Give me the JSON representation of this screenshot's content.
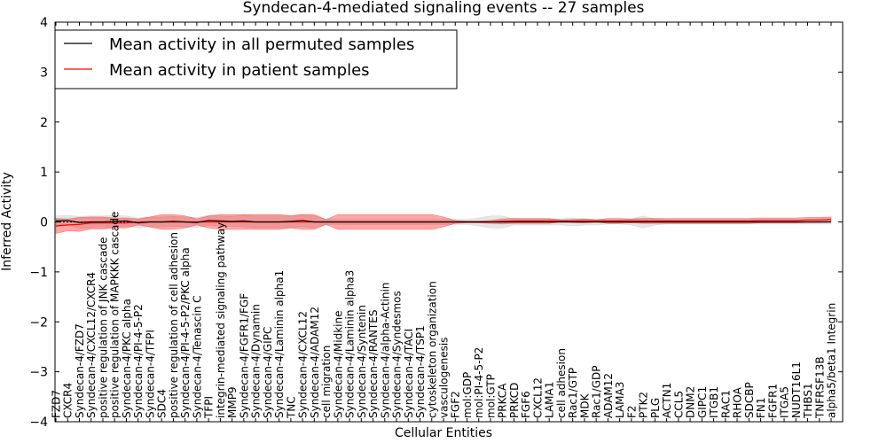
{
  "chart_data": {
    "type": "line",
    "title": "Syndecan-4-mediated signaling events -- 27 samples",
    "xlabel": "Cellular Entities",
    "ylabel": "Inferred Activity",
    "ylim": [
      -4,
      4
    ],
    "yticks": [
      -4,
      -3,
      -2,
      -1,
      0,
      1,
      2,
      3,
      4
    ],
    "grid": false,
    "legend_position": "top-left",
    "categories": [
      "FZD7",
      "CXCR4",
      "Syndecan-4/FZD7",
      "Syndecan-4/CXCL12/CXCR4",
      "positive regulation of JNK cascade",
      "positive regulation of MAPKKK cascade",
      "Syndecan-4/PKC alpha",
      "Syndecan-4/PI-4-5-P2",
      "Syndecan-4/TFPI",
      "SDC4",
      "positive regulation of cell adhesion",
      "Syndecan-4/PI-4-5-P2/PKC alpha",
      "Syndecan-4/Tenascin C",
      "TFPI",
      "integrin-mediated signaling pathway",
      "MMP9",
      "Syndecan-4/FGFR1/FGF",
      "Syndecan-4/Dynamin",
      "Syndecan-4/GIPC",
      "Syndecan-4/Laminin alpha1",
      "TNC",
      "Syndecan-4/CXCL12",
      "Syndecan-4/ADAM12",
      "cell migration",
      "Syndecan-4/Midkine",
      "Syndecan-4/Laminin alpha3",
      "Syndecan-4/Syntenin",
      "Syndecan-4/RANTES",
      "Syndecan-4/alpha-Actinin",
      "Syndecan-4/Syndesmos",
      "Syndecan-4/TACI",
      "Syndecan-4/TSP1",
      "cytoskeleton organization",
      "vasculogenesis",
      "FGF2",
      "mol:GDP",
      "mol:PI-4-5-P2",
      "mol:GTP",
      "PRKCA",
      "PRKCD",
      "FGF6",
      "CXCL12",
      "LAMA1",
      "cell adhesion",
      "Rac1/GTP",
      "MDK",
      "Rac1/GDP",
      "ADAM12",
      "LAMA3",
      "F2",
      "PTK2",
      "PLG",
      "ACTN1",
      "CCL5",
      "DNM2",
      "GIPC1",
      "ITGB1",
      "RAC1",
      "RHOA",
      "SDCBP",
      "FN1",
      "FGFR1",
      "ITGA5",
      "NUDT16L1",
      "THBS1",
      "TNFRSF13B",
      "alpha5/beta1 Integrin"
    ],
    "series": [
      {
        "name": "Mean activity in all permuted samples",
        "color": "#000000",
        "values": [
          0.02,
          0.03,
          -0.01,
          0.0,
          0.0,
          0.01,
          0.02,
          -0.02,
          0.0,
          0.0,
          0.01,
          0.0,
          -0.01,
          0.03,
          0.02,
          0.01,
          0.02,
          0.0,
          0.0,
          0.0,
          0.01,
          0.03,
          0.0,
          0.0,
          0.0,
          0.0,
          0.0,
          0.0,
          0.0,
          0.0,
          0.0,
          0.0,
          0.0,
          0.0,
          0.0,
          0.0,
          0.0,
          0.0,
          0.0,
          0.0,
          0.0,
          0.0,
          0.0,
          0.0,
          0.0,
          0.0,
          0.0,
          0.0,
          0.0,
          0.0,
          0.0,
          0.0,
          0.0,
          0.0,
          0.0,
          0.0,
          0.0,
          0.0,
          0.0,
          0.0,
          0.0,
          0.0,
          0.0,
          0.0,
          0.0,
          0.0,
          0.0
        ],
        "band": [
          0.1,
          0.1,
          0.12,
          0.12,
          0.12,
          0.12,
          0.1,
          0.1,
          0.1,
          0.1,
          0.1,
          0.1,
          0.1,
          0.1,
          0.1,
          0.1,
          0.12,
          0.12,
          0.12,
          0.12,
          0.12,
          0.12,
          0.12,
          0.05,
          0.05,
          0.05,
          0.05,
          0.05,
          0.05,
          0.05,
          0.05,
          0.05,
          0.05,
          0.05,
          0.05,
          0.05,
          0.08,
          0.12,
          0.12,
          0.06,
          0.06,
          0.06,
          0.06,
          0.06,
          0.08,
          0.06,
          0.06,
          0.04,
          0.04,
          0.06,
          0.12,
          0.06,
          0.04,
          0.04,
          0.04,
          0.04,
          0.04,
          0.04,
          0.04,
          0.04,
          0.04,
          0.04,
          0.04,
          0.04,
          0.04,
          0.04,
          0.04
        ]
      },
      {
        "name": "Mean activity in patient samples",
        "color": "#ff0000",
        "values": [
          -0.08,
          -0.06,
          -0.05,
          -0.02,
          -0.02,
          -0.02,
          -0.02,
          0.0,
          0.0,
          0.0,
          0.0,
          0.0,
          0.0,
          0.0,
          0.0,
          0.0,
          0.0,
          0.0,
          0.0,
          0.0,
          0.0,
          0.0,
          0.0,
          0.0,
          0.0,
          0.0,
          0.0,
          0.0,
          0.0,
          0.0,
          0.0,
          0.0,
          0.0,
          0.0,
          0.0,
          0.0,
          0.0,
          0.0,
          0.01,
          0.02,
          0.02,
          0.02,
          0.02,
          0.02,
          0.02,
          0.02,
          0.02,
          0.02,
          0.02,
          0.02,
          0.02,
          0.02,
          0.02,
          0.02,
          0.02,
          0.02,
          0.02,
          0.02,
          0.02,
          0.02,
          0.03,
          0.03,
          0.03,
          0.03,
          0.04,
          0.04,
          0.05
        ],
        "band": [
          0.15,
          0.12,
          0.14,
          0.12,
          0.12,
          0.1,
          0.1,
          0.06,
          0.1,
          0.15,
          0.15,
          0.12,
          0.06,
          0.12,
          0.15,
          0.15,
          0.15,
          0.15,
          0.15,
          0.15,
          0.12,
          0.15,
          0.15,
          0.05,
          0.15,
          0.15,
          0.15,
          0.15,
          0.15,
          0.15,
          0.15,
          0.15,
          0.15,
          0.1,
          0.03,
          0.02,
          0.02,
          0.03,
          0.05,
          0.05,
          0.05,
          0.05,
          0.05,
          0.02,
          0.03,
          0.04,
          0.02,
          0.05,
          0.05,
          0.04,
          0.05,
          0.05,
          0.05,
          0.05,
          0.05,
          0.05,
          0.05,
          0.05,
          0.05,
          0.05,
          0.05,
          0.05,
          0.05,
          0.05,
          0.05,
          0.05,
          0.05
        ]
      }
    ]
  }
}
